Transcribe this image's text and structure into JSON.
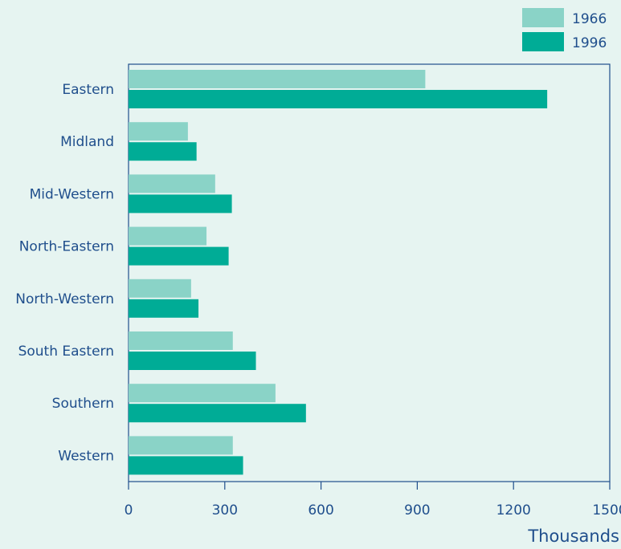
{
  "chart_data": {
    "type": "bar",
    "orientation": "horizontal",
    "categories": [
      "Eastern",
      "Midland",
      "Mid-Western",
      "North-Eastern",
      "North-Western",
      "South Eastern",
      "Southern",
      "Western"
    ],
    "series": [
      {
        "name": "1966",
        "color": "#8ad3c7",
        "values": [
          925,
          185,
          270,
          243,
          195,
          325,
          458,
          325
        ]
      },
      {
        "name": "1996",
        "color": "#00ac96",
        "values": [
          1305,
          212,
          322,
          312,
          218,
          397,
          553,
          357
        ]
      }
    ],
    "xlabel": "Thousands",
    "ylabel": "",
    "xlim": [
      0,
      1500
    ],
    "xticks": [
      0,
      300,
      600,
      900,
      1200,
      1500
    ],
    "grid": false,
    "legend_position": "top-right"
  },
  "colors": {
    "background": "#e6f4f1",
    "axis": "#1f4e8c",
    "text": "#1f4e8c"
  }
}
